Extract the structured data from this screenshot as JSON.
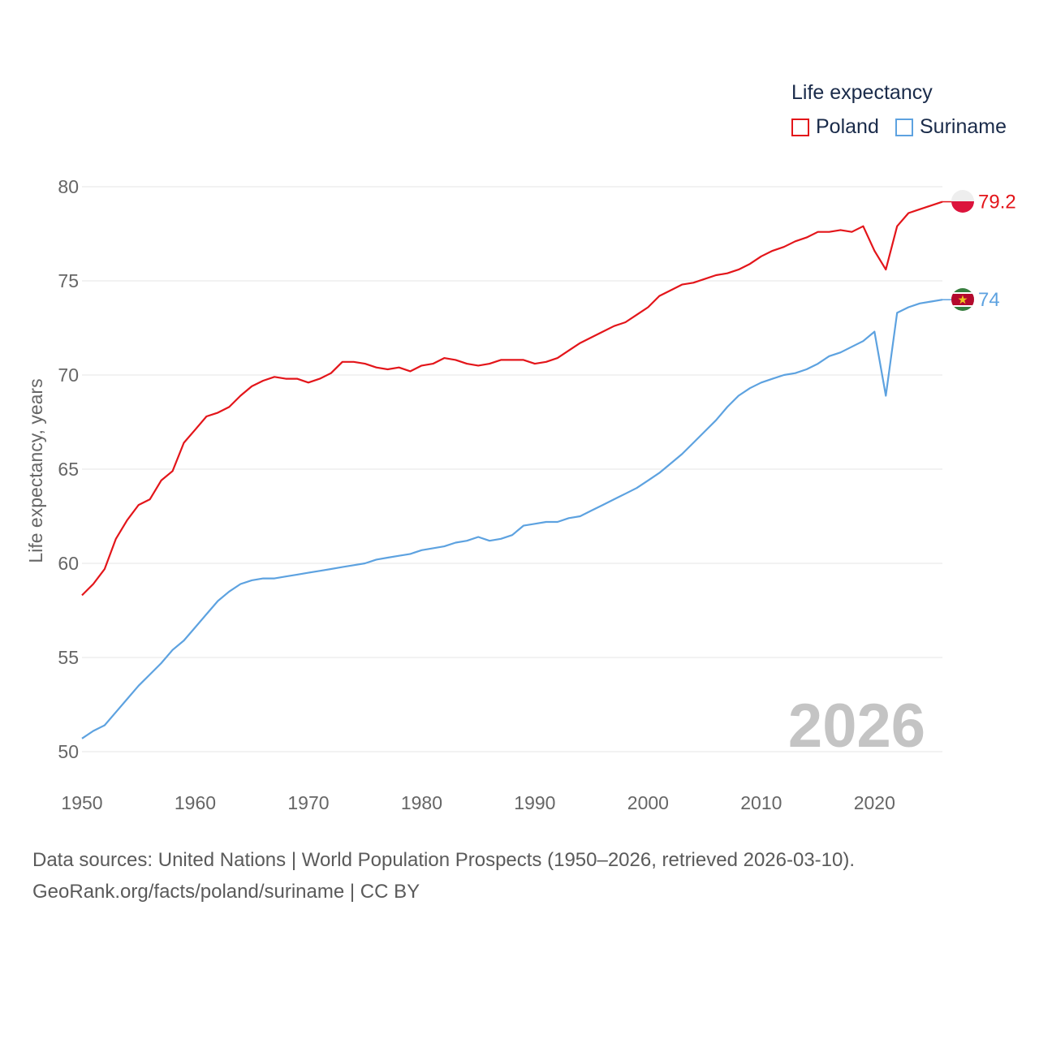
{
  "legend": {
    "title": "Life expectancy",
    "items": [
      {
        "label": "Poland",
        "color": "#e3151a"
      },
      {
        "label": "Suriname",
        "color": "#5da2e0"
      }
    ]
  },
  "year_watermark": "2026",
  "footer": {
    "line1": "Data sources: United Nations | World Population Prospects (1950–2026, retrieved 2026-03-10).",
    "line2": "GeoRank.org/facts/poland/suriname | CC BY"
  },
  "chart_data": {
    "type": "line",
    "title": "Life expectancy",
    "xlabel": "",
    "ylabel": "Life expectancy, years",
    "xlim": [
      1950,
      2026
    ],
    "ylim": [
      50,
      80
    ],
    "x_ticks": [
      1950,
      1960,
      1970,
      1980,
      1990,
      2000,
      2010,
      2020
    ],
    "y_ticks": [
      50,
      55,
      60,
      65,
      70,
      75,
      80
    ],
    "grid": true,
    "legend_position": "top-right",
    "x": [
      1950,
      1951,
      1952,
      1953,
      1954,
      1955,
      1956,
      1957,
      1958,
      1959,
      1960,
      1961,
      1962,
      1963,
      1964,
      1965,
      1966,
      1967,
      1968,
      1969,
      1970,
      1971,
      1972,
      1973,
      1974,
      1975,
      1976,
      1977,
      1978,
      1979,
      1980,
      1981,
      1982,
      1983,
      1984,
      1985,
      1986,
      1987,
      1988,
      1989,
      1990,
      1991,
      1992,
      1993,
      1994,
      1995,
      1996,
      1997,
      1998,
      1999,
      2000,
      2001,
      2002,
      2003,
      2004,
      2005,
      2006,
      2007,
      2008,
      2009,
      2010,
      2011,
      2012,
      2013,
      2014,
      2015,
      2016,
      2017,
      2018,
      2019,
      2020,
      2021,
      2022,
      2023,
      2024,
      2025,
      2026
    ],
    "series": [
      {
        "name": "Poland",
        "color": "#e3151a",
        "end_label": "79.2",
        "values": [
          58.3,
          58.9,
          59.7,
          61.3,
          62.3,
          63.1,
          63.4,
          64.4,
          64.9,
          66.4,
          67.1,
          67.8,
          68.0,
          68.3,
          68.9,
          69.4,
          69.7,
          69.9,
          69.8,
          69.8,
          69.6,
          69.8,
          70.1,
          70.7,
          70.7,
          70.6,
          70.4,
          70.3,
          70.4,
          70.2,
          70.5,
          70.6,
          70.9,
          70.8,
          70.6,
          70.5,
          70.6,
          70.8,
          70.8,
          70.8,
          70.6,
          70.7,
          70.9,
          71.3,
          71.7,
          72.0,
          72.3,
          72.6,
          72.8,
          73.2,
          73.6,
          74.2,
          74.5,
          74.8,
          74.9,
          75.1,
          75.3,
          75.4,
          75.6,
          75.9,
          76.3,
          76.6,
          76.8,
          77.1,
          77.3,
          77.6,
          77.6,
          77.7,
          77.6,
          77.9,
          76.6,
          75.6,
          77.9,
          78.6,
          78.8,
          79.0,
          79.2
        ]
      },
      {
        "name": "Suriname",
        "color": "#5da2e0",
        "end_label": "74",
        "values": [
          50.7,
          51.1,
          51.4,
          52.1,
          52.8,
          53.5,
          54.1,
          54.7,
          55.4,
          55.9,
          56.6,
          57.3,
          58.0,
          58.5,
          58.9,
          59.1,
          59.2,
          59.2,
          59.3,
          59.4,
          59.5,
          59.6,
          59.7,
          59.8,
          59.9,
          60.0,
          60.2,
          60.3,
          60.4,
          60.5,
          60.7,
          60.8,
          60.9,
          61.1,
          61.2,
          61.4,
          61.2,
          61.3,
          61.5,
          62.0,
          62.1,
          62.2,
          62.2,
          62.4,
          62.5,
          62.8,
          63.1,
          63.4,
          63.7,
          64.0,
          64.4,
          64.8,
          65.3,
          65.8,
          66.4,
          67.0,
          67.6,
          68.3,
          68.9,
          69.3,
          69.6,
          69.8,
          70.0,
          70.1,
          70.3,
          70.6,
          71.0,
          71.2,
          71.5,
          71.8,
          72.3,
          68.9,
          73.3,
          73.6,
          73.8,
          73.9,
          74.0
        ]
      }
    ]
  }
}
